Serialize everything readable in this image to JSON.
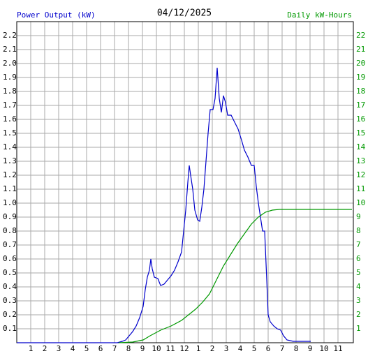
{
  "chart_data": {
    "type": "line",
    "title": "04/12/2025",
    "ylabel": "Power Output (kW)",
    "y2label": "Daily kW-Hours",
    "grid": true,
    "xlim": [
      0,
      24.1
    ],
    "xticks": [
      {
        "value": 1,
        "label": "1"
      },
      {
        "value": 2,
        "label": "2"
      },
      {
        "value": 3,
        "label": "3"
      },
      {
        "value": 4,
        "label": "4"
      },
      {
        "value": 5,
        "label": "5"
      },
      {
        "value": 6,
        "label": "6"
      },
      {
        "value": 7,
        "label": "7"
      },
      {
        "value": 8,
        "label": "8"
      },
      {
        "value": 9,
        "label": "9"
      },
      {
        "value": 10,
        "label": "10"
      },
      {
        "value": 11,
        "label": "11"
      },
      12,
      {
        "value": 13,
        "label": "1"
      },
      {
        "value": 14,
        "label": "2"
      },
      {
        "value": 15,
        "label": "3"
      },
      {
        "value": 16,
        "label": "4"
      },
      {
        "value": 17,
        "label": "5"
      },
      {
        "value": 18,
        "label": "6"
      },
      {
        "value": 19,
        "label": "7"
      },
      {
        "value": 20,
        "label": "8"
      },
      {
        "value": 21,
        "label": "9"
      },
      {
        "value": 22,
        "label": "10"
      },
      {
        "value": 23,
        "label": "11"
      }
    ],
    "ylim": [
      0,
      2.3
    ],
    "yticks": [
      0.1,
      0.2,
      0.3,
      0.4,
      0.5,
      0.6,
      0.7,
      0.8,
      0.9,
      {
        "value": 1.0,
        "label": "1.0"
      },
      1.1,
      1.2,
      1.3,
      1.4,
      1.5,
      1.6,
      1.7,
      1.8,
      1.9,
      {
        "value": 2.0,
        "label": "2.0"
      },
      2.1,
      2.2
    ],
    "y2lim": [
      0,
      23
    ],
    "y2ticks": [
      1,
      2,
      3,
      4,
      5,
      6,
      7,
      8,
      9,
      10,
      11,
      12,
      13,
      14,
      15,
      16,
      17,
      18,
      19,
      20,
      21,
      22
    ],
    "series": [
      {
        "name": "Power Output (kW)",
        "color": "#0000cc",
        "x": [
          0,
          7.2,
          7.55,
          7.8,
          8.05,
          8.3,
          8.55,
          8.8,
          9.05,
          9.2,
          9.35,
          9.5,
          9.6,
          9.7,
          9.85,
          10.1,
          10.3,
          10.55,
          10.8,
          11.05,
          11.3,
          11.55,
          11.8,
          11.95,
          12.1,
          12.25,
          12.35,
          12.45,
          12.6,
          12.75,
          12.95,
          13.1,
          13.25,
          13.4,
          13.55,
          13.7,
          13.85,
          14.05,
          14.2,
          14.35,
          14.5,
          14.65,
          14.8,
          14.95,
          15.1,
          15.35,
          15.6,
          15.85,
          16.1,
          16.3,
          16.55,
          16.8,
          17.0,
          17.15,
          17.3,
          17.45,
          17.6,
          17.75,
          17.9,
          18.0,
          18.15,
          18.4,
          18.65,
          18.9,
          19.1,
          19.35,
          19.8,
          21.05
        ],
        "values": [
          0,
          0,
          0.01,
          0.02,
          0.05,
          0.08,
          0.12,
          0.18,
          0.26,
          0.38,
          0.47,
          0.52,
          0.6,
          0.53,
          0.47,
          0.46,
          0.41,
          0.42,
          0.45,
          0.48,
          0.52,
          0.58,
          0.65,
          0.8,
          0.95,
          1.15,
          1.27,
          1.2,
          1.1,
          0.95,
          0.88,
          0.87,
          0.97,
          1.1,
          1.3,
          1.5,
          1.67,
          1.67,
          1.75,
          1.97,
          1.75,
          1.65,
          1.77,
          1.72,
          1.63,
          1.63,
          1.58,
          1.53,
          1.45,
          1.38,
          1.33,
          1.27,
          1.27,
          1.12,
          1.0,
          0.9,
          0.8,
          0.8,
          0.45,
          0.2,
          0.15,
          0.12,
          0.1,
          0.09,
          0.05,
          0.02,
          0.01,
          0.01
        ]
      },
      {
        "name": "Daily kW-Hours",
        "color": "#009900",
        "axis": "y2",
        "x": [
          7.3,
          8.3,
          9.05,
          9.55,
          10.3,
          11.05,
          11.8,
          12.3,
          12.8,
          13.3,
          13.8,
          14.3,
          14.8,
          15.3,
          15.8,
          16.3,
          16.8,
          17.3,
          17.8,
          18.3,
          18.8,
          24
        ],
        "values": [
          0,
          0.05,
          0.2,
          0.5,
          0.9,
          1.2,
          1.6,
          2.0,
          2.4,
          2.9,
          3.5,
          4.5,
          5.5,
          6.3,
          7.1,
          7.8,
          8.5,
          9.0,
          9.35,
          9.5,
          9.55,
          9.55
        ]
      }
    ]
  }
}
